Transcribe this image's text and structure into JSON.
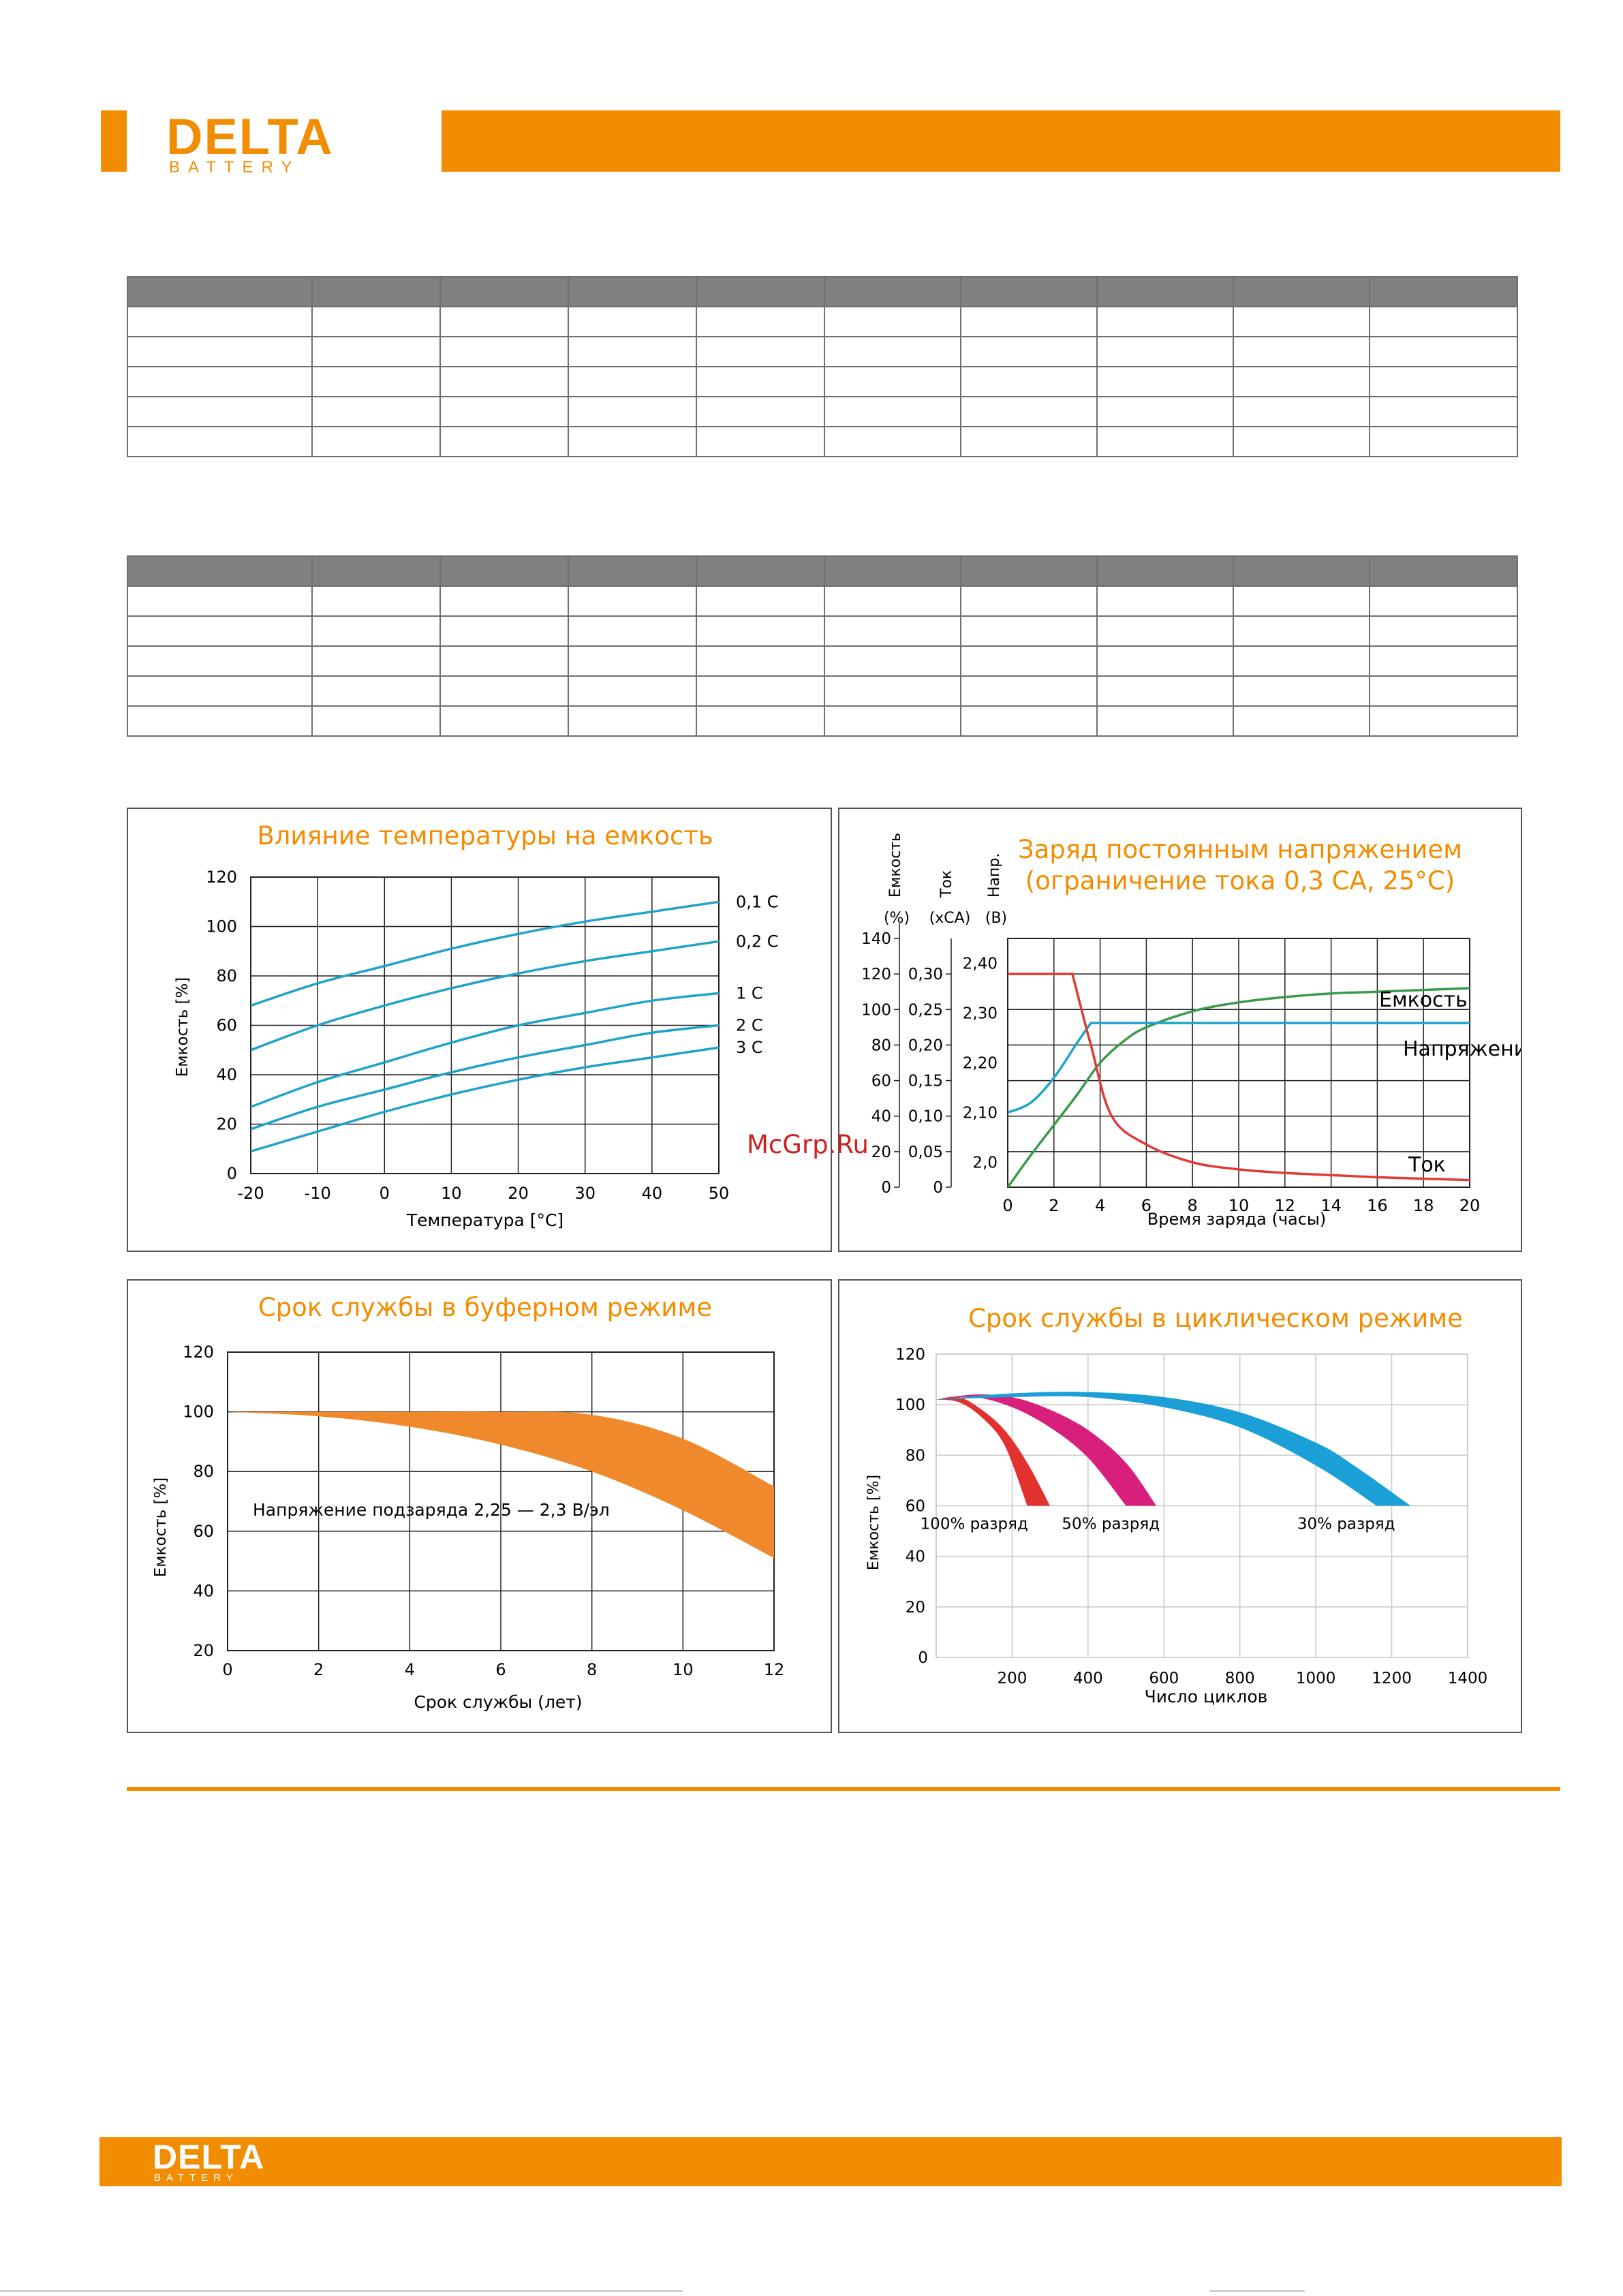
{
  "brand": {
    "name": "DELTA",
    "sub": "BATTERY"
  },
  "watermark": "McGrp.Ru",
  "colors": {
    "accent": "#f28c00",
    "title": "#f28c00",
    "table_header": "#808080"
  },
  "tables": {
    "columns": 10,
    "rows": 5,
    "count": 2
  },
  "charts": {
    "temp": {
      "title": "Влияние температуры на емкость",
      "ylabel": "Емкость [%]",
      "xlabel": "Температура [°C]",
      "xticks": [
        "-20",
        "-10",
        "0",
        "10",
        "20",
        "30",
        "40",
        "50"
      ],
      "yticks": [
        "0",
        "20",
        "40",
        "60",
        "80",
        "100",
        "120"
      ]
    },
    "charge": {
      "title1": "Заряд постоянным напряжением",
      "title2": "(ограничение тока 0,3 СА, 25°С)",
      "axis1_name": "Емкость",
      "axis1_unit": "(%)",
      "axis2_name": "Ток",
      "axis2_unit": "(xCA)",
      "axis3_name": "Напр.",
      "axis3_unit": "(В)",
      "ticks_cap": [
        "0",
        "20",
        "40",
        "60",
        "80",
        "100",
        "120",
        "140"
      ],
      "ticks_cur": [
        "0",
        "0,05",
        "0,10",
        "0,15",
        "0,20",
        "0,25",
        "0,30"
      ],
      "ticks_volt": [
        "2,0",
        "2,10",
        "2,20",
        "2,30",
        "2,40"
      ],
      "xticks": [
        "0",
        "2",
        "4",
        "6",
        "8",
        "10",
        "12",
        "14",
        "16",
        "18",
        "20"
      ],
      "xlabel": "Время заряда (часы)",
      "label_capacity": "Емкость",
      "label_voltage": "Напряжение",
      "label_current": "Ток"
    },
    "buffer": {
      "title": "Срок службы в буферном режиме",
      "ylabel": "Емкость [%]",
      "xlabel": "Срок службы (лет)",
      "xticks": [
        "0",
        "2",
        "4",
        "6",
        "8",
        "10",
        "12"
      ],
      "yticks": [
        "20",
        "40",
        "60",
        "80",
        "100",
        "120"
      ],
      "annotation": "Напряжение подзаряда 2,25 — 2,3 В/эл"
    },
    "cyclic": {
      "title": "Срок службы в циклическом режиме",
      "ylabel": "Емкость [%]",
      "xlabel": "Число циклов",
      "xticks": [
        "0",
        "200",
        "400",
        "600",
        "800",
        "1000",
        "1200",
        "1400"
      ],
      "yticks": [
        "20",
        "40",
        "60",
        "80",
        "100",
        "120"
      ],
      "label_100": "100% разряд",
      "label_50": "50% разряд",
      "label_30": "30% разряд"
    }
  },
  "chart_data": [
    {
      "type": "line",
      "title": "Влияние температуры на емкость",
      "xlabel": "Температура [°C]",
      "ylabel": "Емкость [%]",
      "xlim": [
        -20,
        50
      ],
      "ylim": [
        0,
        120
      ],
      "grid": true,
      "x": [
        -20,
        -10,
        0,
        10,
        20,
        30,
        40,
        50
      ],
      "series": [
        {
          "name": "0,1 C",
          "color": "#1fa3c9",
          "values": [
            68,
            77,
            84,
            91,
            97,
            102,
            106,
            110
          ]
        },
        {
          "name": "0,2 C",
          "color": "#1fa3c9",
          "values": [
            50,
            60,
            68,
            75,
            81,
            86,
            90,
            94
          ]
        },
        {
          "name": "1 C",
          "color": "#1fa3c9",
          "values": [
            27,
            37,
            45,
            53,
            60,
            65,
            70,
            73
          ]
        },
        {
          "name": "2 C",
          "color": "#1fa3c9",
          "values": [
            18,
            27,
            34,
            41,
            47,
            52,
            57,
            60
          ]
        },
        {
          "name": "3 C",
          "color": "#1fa3c9",
          "values": [
            9,
            17,
            25,
            32,
            38,
            43,
            47,
            51
          ]
        }
      ]
    },
    {
      "type": "line",
      "title": "Заряд постоянным напряжением (ограничение тока 0,3 СА, 25°С)",
      "xlabel": "Время заряда (часы)",
      "xlim": [
        0,
        20
      ],
      "grid": true,
      "y_axes": [
        {
          "name": "Емкость",
          "unit": "(%)",
          "range": [
            0,
            140
          ]
        },
        {
          "name": "Ток",
          "unit": "(xCA)",
          "range": [
            0,
            0.35
          ]
        },
        {
          "name": "Напр.",
          "unit": "(В)",
          "range": [
            1.95,
            2.45
          ]
        }
      ],
      "series": [
        {
          "name": "Емкость",
          "axis": "(%)",
          "color": "#3a9a48",
          "x": [
            0,
            1,
            2,
            3,
            4,
            5,
            6,
            8,
            10,
            12,
            14,
            16,
            18,
            20
          ],
          "values": [
            0,
            18,
            35,
            52,
            70,
            82,
            90,
            99,
            104,
            107,
            109,
            110,
            111,
            112
          ]
        },
        {
          "name": "Напряжение",
          "axis": "(В)",
          "color": "#1fa3c9",
          "x": [
            0,
            1,
            2,
            3,
            3.6,
            20
          ],
          "values": [
            2.1,
            2.12,
            2.17,
            2.24,
            2.28,
            2.28
          ]
        },
        {
          "name": "Ток",
          "axis": "(xCA)",
          "color": "#e03a36",
          "x": [
            0,
            2.8,
            3.6,
            4.5,
            6,
            8,
            10,
            12,
            14,
            16,
            18,
            20
          ],
          "values": [
            0.3,
            0.3,
            0.2,
            0.1,
            0.06,
            0.035,
            0.025,
            0.02,
            0.017,
            0.014,
            0.012,
            0.01
          ]
        }
      ]
    },
    {
      "type": "area",
      "title": "Срок службы в буферном режиме",
      "xlabel": "Срок службы (лет)",
      "ylabel": "Емкость [%]",
      "xlim": [
        0,
        12
      ],
      "ylim": [
        20,
        120
      ],
      "grid": true,
      "x": [
        0,
        2,
        4,
        6,
        8,
        10,
        12
      ],
      "series": [
        {
          "name": "upper",
          "color": "#f0892c",
          "values": [
            100,
            100,
            100,
            100,
            99,
            91,
            75
          ]
        },
        {
          "name": "lower",
          "color": "#f0892c",
          "values": [
            100,
            98.5,
            95,
            89,
            80,
            67,
            51
          ]
        }
      ]
    },
    {
      "type": "area",
      "title": "Срок службы в циклическом режиме",
      "xlabel": "Число циклов",
      "ylabel": "Емкость [%]",
      "xlim": [
        0,
        1400
      ],
      "ylim": [
        0,
        120
      ],
      "grid": true,
      "series": [
        {
          "name": "100% разряд",
          "color": "#e2312f",
          "upper": {
            "x": [
              0,
              60,
              120,
              180,
              240,
              300
            ],
            "values": [
              102,
              103,
              98,
              90,
              77,
              60
            ]
          },
          "lower": {
            "x": [
              0,
              60,
              120,
              180,
              240
            ],
            "values": [
              102,
              101,
              95,
              84,
              60
            ]
          }
        },
        {
          "name": "50% разряд",
          "color": "#d81f7c",
          "upper": {
            "x": [
              0,
              100,
              200,
              300,
              400,
              500,
              580
            ],
            "values": [
              102,
              104,
              103,
              98,
              90,
              77,
              60
            ]
          },
          "lower": {
            "x": [
              0,
              100,
              200,
              300,
              400,
              500
            ],
            "values": [
              102,
              103,
              99,
              91,
              79,
              60
            ]
          }
        },
        {
          "name": "30% разряд",
          "color": "#1aa0d6",
          "upper": {
            "x": [
              0,
              200,
              400,
              600,
              800,
              1000,
              1100,
              1250
            ],
            "values": [
              102,
              104.5,
              105,
              103,
              97,
              85,
              76,
              60
            ]
          },
          "lower": {
            "x": [
              0,
              200,
              400,
              600,
              800,
              1000,
              1160
            ],
            "values": [
              102,
              103,
              103,
              99,
              91,
              76,
              60
            ]
          }
        }
      ]
    }
  ]
}
